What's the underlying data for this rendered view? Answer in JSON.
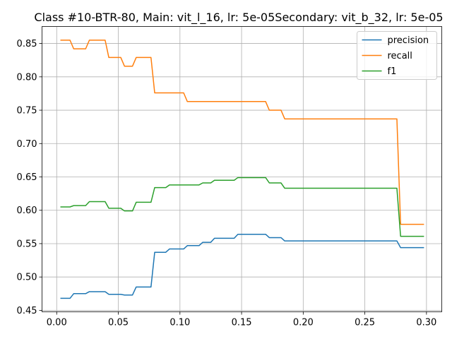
{
  "chart_data": {
    "type": "line",
    "title": "Class #10-BTR-80, Main: vit_l_16, lr: 5e-05Secondary: vit_b_32, lr: 5e-05",
    "xlabel": "",
    "ylabel": "",
    "xlim": [
      -0.0119,
      0.3124
    ],
    "ylim": [
      0.4478,
      0.8755
    ],
    "xticks": [
      0.0,
      0.05,
      0.1,
      0.15,
      0.2,
      0.25,
      0.3
    ],
    "xtick_labels": [
      "0.00",
      "0.05",
      "0.10",
      "0.15",
      "0.20",
      "0.25",
      "0.30"
    ],
    "yticks": [
      0.45,
      0.5,
      0.55,
      0.6,
      0.65,
      0.7,
      0.75,
      0.8,
      0.85
    ],
    "ytick_labels": [
      "0.45",
      "0.50",
      "0.55",
      "0.60",
      "0.65",
      "0.70",
      "0.75",
      "0.80",
      "0.85"
    ],
    "grid": true,
    "legend_position": "top-right",
    "series": [
      {
        "name": "precision",
        "color": "#1f77b4",
        "x": [
          0.003,
          0.0108,
          0.0138,
          0.0235,
          0.0265,
          0.0393,
          0.0423,
          0.052,
          0.055,
          0.0615,
          0.0645,
          0.0765,
          0.0795,
          0.0885,
          0.0915,
          0.103,
          0.106,
          0.1155,
          0.1185,
          0.125,
          0.128,
          0.1375,
          0.1405,
          0.144,
          0.147,
          0.1695,
          0.1725,
          0.182,
          0.185,
          0.276,
          0.279,
          0.298
        ],
        "y": [
          0.468,
          0.468,
          0.475,
          0.475,
          0.478,
          0.478,
          0.474,
          0.474,
          0.473,
          0.473,
          0.485,
          0.485,
          0.537,
          0.537,
          0.542,
          0.542,
          0.547,
          0.547,
          0.552,
          0.552,
          0.558,
          0.558,
          0.558,
          0.558,
          0.564,
          0.564,
          0.559,
          0.559,
          0.554,
          0.554,
          0.544,
          0.544
        ]
      },
      {
        "name": "recall",
        "color": "#ff7f0e",
        "x": [
          0.003,
          0.0108,
          0.0138,
          0.0235,
          0.0265,
          0.0393,
          0.0423,
          0.052,
          0.055,
          0.0615,
          0.0645,
          0.0765,
          0.0795,
          0.103,
          0.106,
          0.1695,
          0.1725,
          0.182,
          0.185,
          0.276,
          0.279,
          0.298
        ],
        "y": [
          0.855,
          0.855,
          0.842,
          0.842,
          0.855,
          0.855,
          0.829,
          0.829,
          0.816,
          0.816,
          0.829,
          0.829,
          0.776,
          0.776,
          0.763,
          0.763,
          0.75,
          0.75,
          0.737,
          0.737,
          0.579,
          0.579
        ]
      },
      {
        "name": "f1",
        "color": "#2ca02c",
        "x": [
          0.003,
          0.0108,
          0.0138,
          0.0235,
          0.0265,
          0.0393,
          0.0423,
          0.052,
          0.055,
          0.0615,
          0.0645,
          0.0765,
          0.0795,
          0.0885,
          0.0915,
          0.103,
          0.106,
          0.1155,
          0.1185,
          0.125,
          0.128,
          0.1375,
          0.1405,
          0.144,
          0.147,
          0.1695,
          0.1725,
          0.182,
          0.185,
          0.276,
          0.279,
          0.298
        ],
        "y": [
          0.605,
          0.605,
          0.607,
          0.607,
          0.613,
          0.613,
          0.603,
          0.603,
          0.599,
          0.599,
          0.612,
          0.612,
          0.634,
          0.634,
          0.638,
          0.638,
          0.638,
          0.638,
          0.641,
          0.641,
          0.645,
          0.645,
          0.645,
          0.645,
          0.649,
          0.649,
          0.641,
          0.641,
          0.633,
          0.633,
          0.561,
          0.561
        ]
      }
    ]
  }
}
